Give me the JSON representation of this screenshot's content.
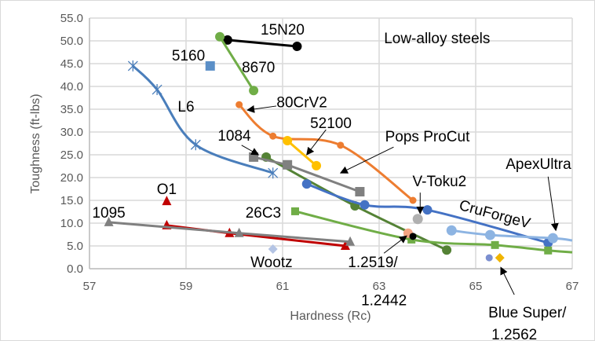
{
  "chart_data": {
    "type": "line",
    "title": "",
    "xlabel": "Hardness (Rc)",
    "ylabel": "Toughness (ft-lbs)",
    "xlim": [
      57,
      67
    ],
    "ylim": [
      0,
      55
    ],
    "xticks": [
      57,
      59,
      61,
      63,
      65,
      67
    ],
    "xtick_labels": [
      "57",
      "59",
      "61",
      "63",
      "65",
      "67"
    ],
    "yticks": [
      0,
      5,
      10,
      15,
      20,
      25,
      30,
      35,
      40,
      45,
      50,
      55
    ],
    "ytick_labels": [
      "0.0",
      "5.0",
      "10.0",
      "15.0",
      "20.0",
      "25.0",
      "30.0",
      "35.0",
      "40.0",
      "45.0",
      "50.0",
      "55.0"
    ],
    "grid": true,
    "series": [
      {
        "name": "15N20",
        "color": "#000000",
        "marker": "circle",
        "smooth": false,
        "points": [
          [
            59.86,
            50.2
          ],
          [
            61.3,
            48.8
          ]
        ]
      },
      {
        "name": "8670",
        "color": "#70ad47",
        "marker": "circle",
        "smooth": false,
        "points": [
          [
            59.7,
            50.9
          ],
          [
            60.4,
            39.1
          ]
        ]
      },
      {
        "name": "5160",
        "color": "#5b8fc7",
        "marker": "square",
        "smooth": false,
        "points": [
          [
            59.5,
            44.5
          ]
        ]
      },
      {
        "name": "L6",
        "color": "#4a7ebb",
        "marker": "star",
        "smooth": true,
        "points": [
          [
            57.9,
            44.5
          ],
          [
            58.4,
            39.3
          ],
          [
            59.2,
            27.2
          ],
          [
            60.8,
            21.0
          ]
        ]
      },
      {
        "name": "80CrV2",
        "color": "#ed7d31",
        "marker": "circle-small",
        "smooth": true,
        "points": [
          [
            60.1,
            36.0
          ],
          [
            60.8,
            29.1
          ],
          [
            62.2,
            27.1
          ],
          [
            63.7,
            15.0
          ]
        ]
      },
      {
        "name": "52100",
        "color": "#ffc000",
        "marker": "circle",
        "smooth": false,
        "points": [
          [
            61.1,
            28.1
          ],
          [
            61.7,
            22.6
          ]
        ]
      },
      {
        "name": "1084",
        "color": "#548235",
        "marker": "circle",
        "smooth": true,
        "points": [
          [
            60.66,
            24.5
          ],
          [
            62.5,
            13.8
          ],
          [
            64.4,
            4.1
          ]
        ]
      },
      {
        "name": "Pops ProCut",
        "color": "#808080",
        "marker": "square",
        "smooth": false,
        "points": [
          [
            60.4,
            24.5
          ],
          [
            61.1,
            22.8
          ],
          [
            62.6,
            16.9
          ]
        ]
      },
      {
        "name": "CruForgeV",
        "color": "#4472c4",
        "marker": "circle",
        "smooth": true,
        "points": [
          [
            61.5,
            18.6
          ],
          [
            62.7,
            14.0
          ],
          [
            64.0,
            12.9
          ],
          [
            66.5,
            5.7
          ]
        ]
      },
      {
        "name": "ApexUltra",
        "color": "#8db4e2",
        "marker": "circle-large",
        "smooth": true,
        "points": [
          [
            64.5,
            8.4
          ],
          [
            65.3,
            7.4
          ],
          [
            66.6,
            6.7
          ],
          [
            67.0,
            6.2
          ]
        ]
      },
      {
        "name": "26C3",
        "color": "#70ad47",
        "marker": "square-small",
        "smooth": true,
        "points": [
          [
            61.26,
            12.6
          ],
          [
            63.67,
            6.4
          ],
          [
            65.4,
            5.2
          ],
          [
            66.5,
            4.0
          ],
          [
            67.0,
            3.6
          ]
        ]
      },
      {
        "name": "V-Toku2",
        "color": "#b0b0b0",
        "marker": "circle-large",
        "smooth": false,
        "points": [
          [
            63.8,
            10.9
          ]
        ]
      },
      {
        "name": "1.2519",
        "color": "#f4a582",
        "marker": "circle",
        "smooth": false,
        "points": [
          [
            63.6,
            7.8
          ]
        ]
      },
      {
        "name": "1.2442",
        "color": "#000000",
        "marker": "circle-small",
        "smooth": false,
        "points": [
          [
            63.7,
            7.1
          ]
        ]
      },
      {
        "name": "Blue Super",
        "color": "#7b8fd0",
        "marker": "circle-small",
        "smooth": false,
        "points": [
          [
            65.28,
            2.4
          ]
        ]
      },
      {
        "name": "1.2562",
        "color": "#f0b400",
        "marker": "diamond",
        "smooth": false,
        "points": [
          [
            65.5,
            2.4
          ]
        ]
      },
      {
        "name": "Wootz",
        "color": "#b4c4e4",
        "marker": "diamond",
        "smooth": false,
        "points": [
          [
            60.8,
            4.3
          ]
        ]
      },
      {
        "name": "O1",
        "color": "#c00000",
        "marker": "triangle",
        "smooth": false,
        "points": [
          [
            58.6,
            9.5
          ],
          [
            59.9,
            7.8
          ],
          [
            62.3,
            5.0
          ]
        ]
      },
      {
        "name": "O1 single",
        "color": "#c00000",
        "marker": "triangle",
        "smooth": false,
        "nolines": true,
        "points": [
          [
            58.6,
            14.8
          ]
        ]
      },
      {
        "name": "1095",
        "color": "#808080",
        "marker": "triangle",
        "smooth": false,
        "points": [
          [
            57.4,
            10.2
          ],
          [
            60.1,
            7.8
          ],
          [
            62.4,
            5.9
          ]
        ]
      }
    ],
    "annotations": [
      {
        "text": "15N20",
        "x": 61.0,
        "y": 52.6
      },
      {
        "text": "Low-alloy steels",
        "x": 64.2,
        "y": 50.7
      },
      {
        "text": "5160",
        "x": 59.05,
        "y": 46.9
      },
      {
        "text": "8670",
        "x": 60.5,
        "y": 44.3
      },
      {
        "text": "L6",
        "x": 59.0,
        "y": 35.7
      },
      {
        "text": "80CrV2",
        "x": 61.4,
        "y": 36.6,
        "arrow": [
          [
            60.87,
            35.7
          ],
          [
            60.27,
            34.8
          ]
        ]
      },
      {
        "text": "52100",
        "x": 62.0,
        "y": 32.1,
        "arrow": [
          [
            61.9,
            30.5
          ],
          [
            61.5,
            25.0
          ]
        ]
      },
      {
        "text": "1084",
        "x": 60.0,
        "y": 29.3,
        "arrow": [
          [
            60.15,
            27.1
          ],
          [
            60.5,
            25.0
          ]
        ]
      },
      {
        "text": "Pops ProCut",
        "x": 64.0,
        "y": 29.1,
        "arrow": [
          [
            63.3,
            26.7
          ],
          [
            62.2,
            21.0
          ]
        ]
      },
      {
        "text": "O1",
        "x": 58.6,
        "y": 17.6
      },
      {
        "text": "V-Toku2",
        "x": 64.25,
        "y": 19.3,
        "arrow": [
          [
            63.85,
            16.7
          ],
          [
            63.85,
            12.1
          ]
        ]
      },
      {
        "text": "1095",
        "x": 57.4,
        "y": 12.4
      },
      {
        "text": "26C3",
        "x": 60.6,
        "y": 12.4
      },
      {
        "text": "CruForgeV",
        "x": 65.4,
        "y": 12.1,
        "rotate": 15
      },
      {
        "text": "ApexUltra",
        "x": 66.3,
        "y": 23.1,
        "arrow": [
          [
            66.5,
            20.2
          ],
          [
            66.66,
            8.4
          ]
        ]
      },
      {
        "text": "Wootz",
        "x": 60.77,
        "y": 1.55
      },
      {
        "text": "1.2519/",
        "x": 62.87,
        "y": 1.55,
        "arrow": [
          [
            63.1,
            3.4
          ],
          [
            63.57,
            7.2
          ]
        ]
      },
      {
        "text": "1.2442",
        "x": 63.1,
        "y": -3.4
      },
      {
        "text": "Blue Super/",
        "x": 66.07,
        "y": -9.5,
        "arrow": [
          [
            65.8,
            -5.7
          ],
          [
            65.52,
            0.3
          ]
        ]
      },
      {
        "text": "1.2562",
        "x": 65.8,
        "y": -14.3
      }
    ]
  }
}
